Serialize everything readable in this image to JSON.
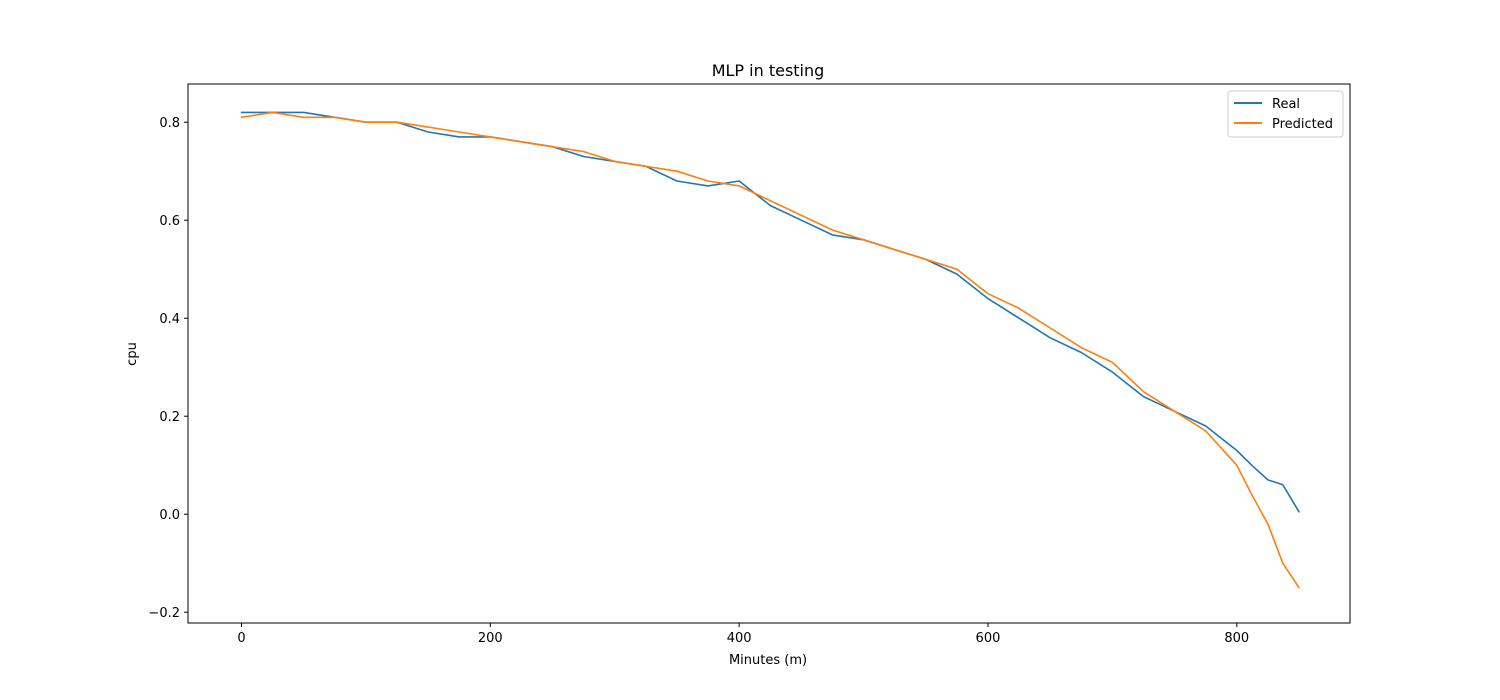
{
  "chart_data": {
    "type": "line",
    "title": "MLP in testing",
    "xlabel": "Minutes (m)",
    "ylabel": "cpu",
    "xlim": [
      -43,
      891
    ],
    "ylim": [
      -0.222,
      0.878
    ],
    "xticks": [
      0,
      200,
      400,
      600,
      800
    ],
    "xtick_labels": [
      "0",
      "200",
      "400",
      "600",
      "800"
    ],
    "yticks": [
      -0.2,
      0.0,
      0.2,
      0.4,
      0.6,
      0.8
    ],
    "ytick_labels": [
      "−0.2",
      "0.0",
      "0.2",
      "0.4",
      "0.6",
      "0.8"
    ],
    "grid": false,
    "legend_position": "top-right",
    "x": [
      0,
      25,
      50,
      75,
      100,
      125,
      150,
      175,
      200,
      225,
      250,
      275,
      300,
      325,
      350,
      375,
      400,
      425,
      450,
      475,
      500,
      525,
      550,
      575,
      600,
      625,
      650,
      675,
      700,
      725,
      750,
      775,
      800,
      812,
      825,
      837,
      850
    ],
    "series": [
      {
        "name": "Real",
        "color": "#1f77b4",
        "values": [
          0.82,
          0.82,
          0.82,
          0.81,
          0.8,
          0.8,
          0.78,
          0.77,
          0.77,
          0.76,
          0.75,
          0.73,
          0.72,
          0.71,
          0.68,
          0.67,
          0.68,
          0.63,
          0.6,
          0.57,
          0.56,
          0.54,
          0.52,
          0.49,
          0.44,
          0.4,
          0.36,
          0.33,
          0.29,
          0.24,
          0.21,
          0.18,
          0.13,
          0.1,
          0.07,
          0.06,
          0.005
        ]
      },
      {
        "name": "Predicted",
        "color": "#ff7f0e",
        "values": [
          0.81,
          0.82,
          0.81,
          0.81,
          0.8,
          0.8,
          0.79,
          0.78,
          0.77,
          0.76,
          0.75,
          0.74,
          0.72,
          0.71,
          0.7,
          0.68,
          0.67,
          0.64,
          0.61,
          0.58,
          0.56,
          0.54,
          0.52,
          0.5,
          0.45,
          0.42,
          0.38,
          0.34,
          0.31,
          0.25,
          0.21,
          0.17,
          0.1,
          0.04,
          -0.02,
          -0.1,
          -0.15
        ]
      }
    ]
  }
}
